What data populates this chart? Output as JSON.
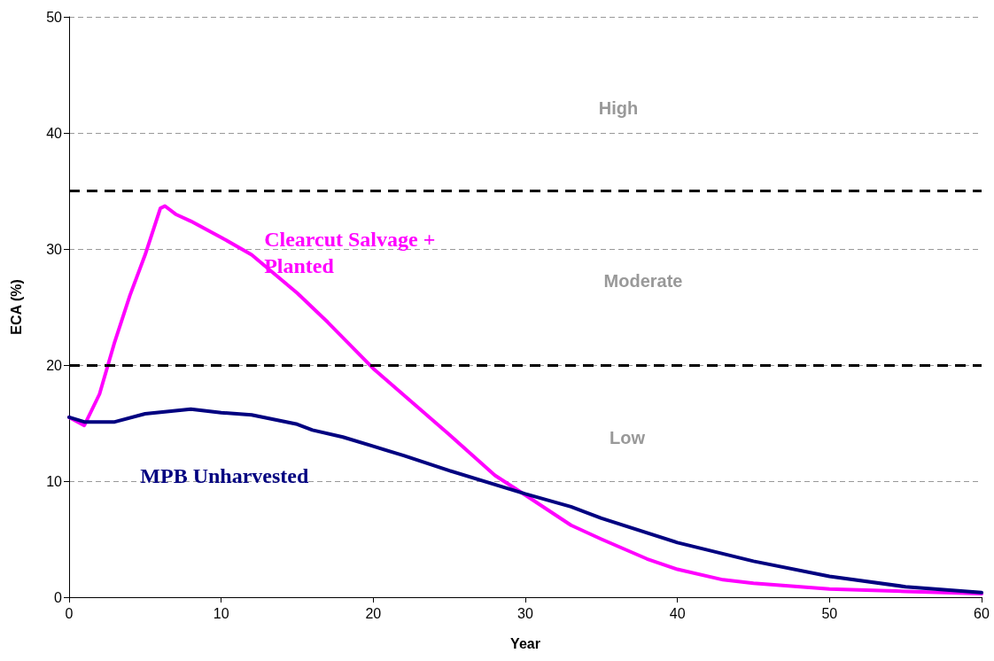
{
  "chart_data": {
    "type": "line",
    "xlabel": "Year",
    "ylabel": "ECA (%)",
    "xlim": [
      0,
      60
    ],
    "xticks": [
      0,
      10,
      20,
      30,
      40,
      50,
      60
    ],
    "ylim": [
      0,
      50
    ],
    "yticks": [
      0,
      10,
      20,
      30,
      40,
      50
    ],
    "grid": "y",
    "legend": false,
    "marker": "none",
    "line_style": "solid",
    "series": [
      {
        "name": "Clearcut Salvage + Planted",
        "color": "#ff00ff",
        "x": [
          0,
          1,
          2,
          3,
          4,
          5,
          6,
          6.3,
          7,
          8,
          10,
          12,
          15,
          17,
          20,
          25,
          28,
          30,
          33,
          35,
          38,
          40,
          43,
          45,
          50,
          55,
          60
        ],
        "values": [
          15.5,
          14.8,
          17.5,
          22,
          26,
          29.5,
          33.5,
          33.7,
          33,
          32.4,
          31,
          29.5,
          26.2,
          23.7,
          19.7,
          14,
          10.5,
          8.8,
          6.2,
          5,
          3.3,
          2.4,
          1.5,
          1.2,
          0.7,
          0.5,
          0.3
        ]
      },
      {
        "name": "MPB Unharvested",
        "color": "#000080",
        "x": [
          0,
          1,
          3,
          5,
          8,
          10,
          12,
          15,
          16,
          18,
          20,
          22,
          25,
          30,
          33,
          35,
          40,
          45,
          50,
          55,
          60
        ],
        "values": [
          15.5,
          15.1,
          15.1,
          15.8,
          16.2,
          15.9,
          15.7,
          14.9,
          14.4,
          13.8,
          13,
          12.2,
          10.9,
          8.9,
          7.8,
          6.8,
          4.7,
          3.1,
          1.8,
          0.9,
          0.4
        ]
      }
    ],
    "ref_lines": [
      {
        "axis": "y",
        "value": 35,
        "color": "#000000",
        "line_style": "dashed"
      },
      {
        "axis": "y",
        "value": 20,
        "color": "#000000",
        "line_style": "dashed"
      }
    ],
    "annotations": [
      "High",
      "Moderate",
      "Low"
    ]
  }
}
